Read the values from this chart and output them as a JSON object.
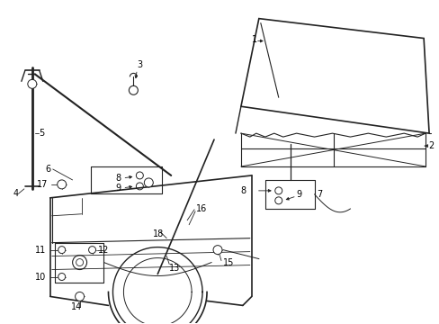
{
  "bg_color": "#ffffff",
  "line_color": "#222222",
  "label_color": "#000000",
  "lfs": 7.0,
  "fig_width": 4.89,
  "fig_height": 3.6,
  "dpi": 100
}
